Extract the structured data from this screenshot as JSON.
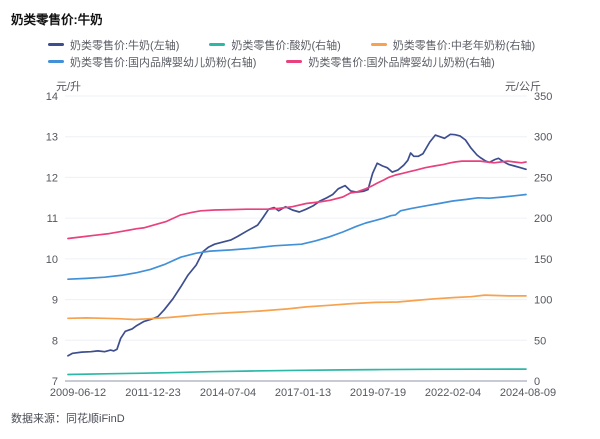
{
  "title": "奶类零售价:牛奶",
  "source": "数据来源：同花顺iFinD",
  "axes": {
    "left_unit": "元/升",
    "right_unit": "元/公斤",
    "left_ticks": [
      "14",
      "13",
      "12",
      "11",
      "10",
      "9",
      "8",
      "7"
    ],
    "right_ticks": [
      "350",
      "300",
      "250",
      "200",
      "150",
      "100",
      "50",
      "0"
    ],
    "x_ticks": [
      "2009-06-12",
      "2011-12-23",
      "2014-07-04",
      "2017-01-13",
      "2019-07-19",
      "2022-02-04",
      "2024-08-09"
    ]
  },
  "colors": {
    "grid": "#eef0f6",
    "axis_line": "#b7bac6",
    "tick_text": "#55575f",
    "title_text": "#121212",
    "legend_text": "#5a5c64",
    "source_text": "#4b4d56",
    "background": "#ffffff"
  },
  "chart_data": {
    "type": "line",
    "title": "奶类零售价:牛奶",
    "x_range": [
      "2009-06-12",
      "2024-08-09"
    ],
    "x_tick_labels": [
      "2009-06-12",
      "2011-12-23",
      "2014-07-04",
      "2017-01-13",
      "2019-07-19",
      "2022-02-04",
      "2024-08-09"
    ],
    "y_left": {
      "unit": "元/升",
      "min": 7,
      "max": 14
    },
    "y_right": {
      "unit": "元/公斤",
      "min": 0,
      "max": 350
    },
    "grid": "horizontal-only",
    "legend_position": "top",
    "series": [
      {
        "name": "奶类零售价:牛奶(左轴)",
        "axis": "left",
        "color": "#3d4e8e",
        "points": [
          [
            0,
            7.62
          ],
          [
            0.01,
            7.68
          ],
          [
            0.03,
            7.71
          ],
          [
            0.05,
            7.72
          ],
          [
            0.065,
            7.74
          ],
          [
            0.08,
            7.72
          ],
          [
            0.093,
            7.76
          ],
          [
            0.1,
            7.74
          ],
          [
            0.107,
            7.78
          ],
          [
            0.115,
            8.05
          ],
          [
            0.125,
            8.22
          ],
          [
            0.14,
            8.28
          ],
          [
            0.15,
            8.36
          ],
          [
            0.165,
            8.46
          ],
          [
            0.183,
            8.52
          ],
          [
            0.196,
            8.58
          ],
          [
            0.21,
            8.75
          ],
          [
            0.229,
            9.02
          ],
          [
            0.246,
            9.31
          ],
          [
            0.262,
            9.6
          ],
          [
            0.28,
            9.85
          ],
          [
            0.295,
            10.18
          ],
          [
            0.307,
            10.29
          ],
          [
            0.32,
            10.36
          ],
          [
            0.34,
            10.42
          ],
          [
            0.355,
            10.46
          ],
          [
            0.37,
            10.55
          ],
          [
            0.39,
            10.68
          ],
          [
            0.414,
            10.83
          ],
          [
            0.425,
            11.0
          ],
          [
            0.438,
            11.22
          ],
          [
            0.45,
            11.26
          ],
          [
            0.46,
            11.18
          ],
          [
            0.475,
            11.28
          ],
          [
            0.49,
            11.2
          ],
          [
            0.505,
            11.15
          ],
          [
            0.52,
            11.22
          ],
          [
            0.535,
            11.3
          ],
          [
            0.55,
            11.42
          ],
          [
            0.565,
            11.5
          ],
          [
            0.578,
            11.58
          ],
          [
            0.59,
            11.72
          ],
          [
            0.605,
            11.8
          ],
          [
            0.617,
            11.67
          ],
          [
            0.63,
            11.64
          ],
          [
            0.645,
            11.66
          ],
          [
            0.655,
            11.7
          ],
          [
            0.665,
            12.1
          ],
          [
            0.675,
            12.35
          ],
          [
            0.687,
            12.28
          ],
          [
            0.697,
            12.24
          ],
          [
            0.708,
            12.13
          ],
          [
            0.72,
            12.18
          ],
          [
            0.733,
            12.3
          ],
          [
            0.742,
            12.42
          ],
          [
            0.748,
            12.6
          ],
          [
            0.755,
            12.52
          ],
          [
            0.765,
            12.52
          ],
          [
            0.775,
            12.58
          ],
          [
            0.79,
            12.87
          ],
          [
            0.802,
            13.04
          ],
          [
            0.812,
            13.0
          ],
          [
            0.822,
            12.96
          ],
          [
            0.835,
            13.06
          ],
          [
            0.845,
            13.05
          ],
          [
            0.856,
            13.02
          ],
          [
            0.868,
            12.92
          ],
          [
            0.88,
            12.72
          ],
          [
            0.893,
            12.55
          ],
          [
            0.9,
            12.49
          ],
          [
            0.912,
            12.4
          ],
          [
            0.92,
            12.37
          ],
          [
            0.932,
            12.44
          ],
          [
            0.94,
            12.47
          ],
          [
            0.952,
            12.38
          ],
          [
            0.962,
            12.32
          ],
          [
            0.975,
            12.28
          ],
          [
            0.988,
            12.24
          ],
          [
            1,
            12.2
          ]
        ]
      },
      {
        "name": "奶类零售价:酸奶(右轴)",
        "axis": "right",
        "color": "#2cb7a6",
        "points": [
          [
            0,
            8
          ],
          [
            0.08,
            8.8
          ],
          [
            0.15,
            9.5
          ],
          [
            0.22,
            10.2
          ],
          [
            0.31,
            11.4
          ],
          [
            0.4,
            12.3
          ],
          [
            0.51,
            13.1
          ],
          [
            0.6,
            13.6
          ],
          [
            0.67,
            14
          ],
          [
            0.78,
            14.4
          ],
          [
            0.88,
            14.5
          ],
          [
            1,
            14.6
          ]
        ]
      },
      {
        "name": "奶类零售价:中老年奶粉(右轴)",
        "axis": "right",
        "color": "#f6a24e",
        "points": [
          [
            0,
            77
          ],
          [
            0.04,
            77.5
          ],
          [
            0.08,
            77
          ],
          [
            0.11,
            76.5
          ],
          [
            0.145,
            75.5
          ],
          [
            0.18,
            76.5
          ],
          [
            0.22,
            78
          ],
          [
            0.26,
            80
          ],
          [
            0.3,
            82
          ],
          [
            0.357,
            84
          ],
          [
            0.42,
            86
          ],
          [
            0.48,
            88.5
          ],
          [
            0.52,
            91
          ],
          [
            0.57,
            93
          ],
          [
            0.62,
            95
          ],
          [
            0.67,
            96.5
          ],
          [
            0.72,
            97
          ],
          [
            0.76,
            99
          ],
          [
            0.8,
            101
          ],
          [
            0.845,
            102.5
          ],
          [
            0.88,
            103.5
          ],
          [
            0.91,
            105.5
          ],
          [
            0.935,
            105
          ],
          [
            0.965,
            104.5
          ],
          [
            1,
            104.5
          ]
        ]
      },
      {
        "name": "奶类零售价:国内品牌婴幼儿奶粉(右轴)",
        "axis": "right",
        "color": "#4290d8",
        "points": [
          [
            0,
            125
          ],
          [
            0.04,
            126
          ],
          [
            0.08,
            127.5
          ],
          [
            0.12,
            130
          ],
          [
            0.15,
            133
          ],
          [
            0.18,
            137
          ],
          [
            0.21,
            143
          ],
          [
            0.246,
            152
          ],
          [
            0.28,
            157
          ],
          [
            0.31,
            159.5
          ],
          [
            0.357,
            161
          ],
          [
            0.4,
            163
          ],
          [
            0.45,
            166
          ],
          [
            0.51,
            168
          ],
          [
            0.54,
            172
          ],
          [
            0.57,
            177
          ],
          [
            0.6,
            183
          ],
          [
            0.63,
            190
          ],
          [
            0.65,
            194
          ],
          [
            0.67,
            197
          ],
          [
            0.69,
            200
          ],
          [
            0.705,
            203
          ],
          [
            0.715,
            204
          ],
          [
            0.726,
            209
          ],
          [
            0.75,
            212
          ],
          [
            0.78,
            215
          ],
          [
            0.81,
            218
          ],
          [
            0.84,
            221
          ],
          [
            0.87,
            223
          ],
          [
            0.895,
            225
          ],
          [
            0.92,
            224.5
          ],
          [
            0.95,
            226
          ],
          [
            0.975,
            227.5
          ],
          [
            1,
            229
          ]
        ]
      },
      {
        "name": "奶类零售价:国外品牌婴幼儿奶粉(右轴)",
        "axis": "right",
        "color": "#e8417e",
        "points": [
          [
            0,
            175
          ],
          [
            0.03,
            177
          ],
          [
            0.06,
            179
          ],
          [
            0.09,
            181
          ],
          [
            0.12,
            184
          ],
          [
            0.15,
            187
          ],
          [
            0.165,
            188
          ],
          [
            0.19,
            192
          ],
          [
            0.215,
            196
          ],
          [
            0.246,
            204
          ],
          [
            0.27,
            207
          ],
          [
            0.29,
            209
          ],
          [
            0.32,
            210
          ],
          [
            0.357,
            210.5
          ],
          [
            0.39,
            211
          ],
          [
            0.42,
            211
          ],
          [
            0.438,
            211
          ],
          [
            0.46,
            212
          ],
          [
            0.49,
            214
          ],
          [
            0.52,
            218
          ],
          [
            0.55,
            220
          ],
          [
            0.573,
            222
          ],
          [
            0.6,
            226
          ],
          [
            0.617,
            231
          ],
          [
            0.63,
            232
          ],
          [
            0.65,
            236
          ],
          [
            0.665,
            240
          ],
          [
            0.675,
            243
          ],
          [
            0.69,
            247
          ],
          [
            0.7,
            250
          ],
          [
            0.715,
            253
          ],
          [
            0.73,
            255
          ],
          [
            0.745,
            257
          ],
          [
            0.76,
            259
          ],
          [
            0.78,
            262
          ],
          [
            0.8,
            264
          ],
          [
            0.82,
            266
          ],
          [
            0.835,
            268
          ],
          [
            0.845,
            269
          ],
          [
            0.86,
            270
          ],
          [
            0.88,
            270
          ],
          [
            0.9,
            270
          ],
          [
            0.915,
            269
          ],
          [
            0.93,
            268
          ],
          [
            0.945,
            269
          ],
          [
            0.96,
            270
          ],
          [
            0.975,
            269
          ],
          [
            0.99,
            268
          ],
          [
            1,
            269
          ]
        ]
      }
    ]
  }
}
